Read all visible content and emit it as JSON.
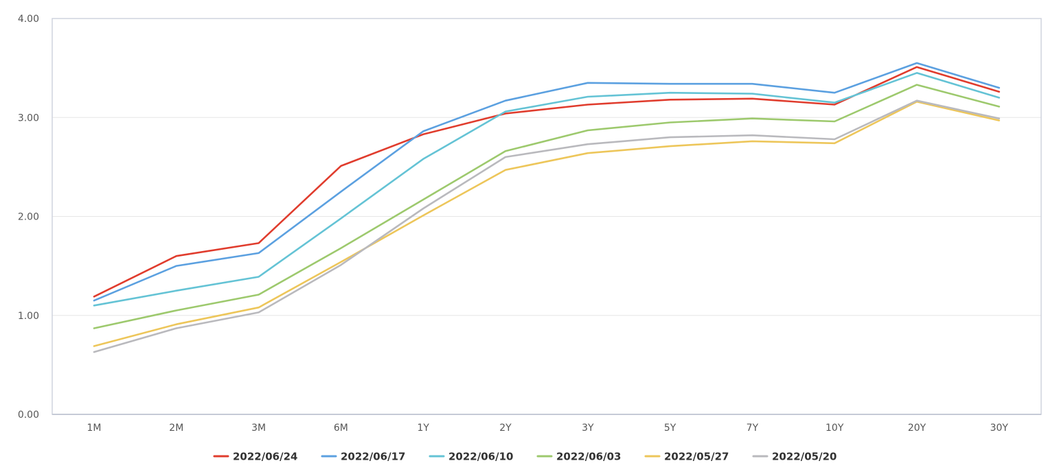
{
  "chart_data": {
    "type": "line",
    "title": "",
    "xlabel": "",
    "ylabel": "",
    "categories": [
      "1M",
      "2M",
      "3M",
      "6M",
      "1Y",
      "2Y",
      "3Y",
      "5Y",
      "7Y",
      "10Y",
      "20Y",
      "30Y"
    ],
    "ylim": [
      0,
      4
    ],
    "yticks": [
      "0.00",
      "1.00",
      "2.00",
      "3.00",
      "4.00"
    ],
    "grid": true,
    "legend": "bottom",
    "series": [
      {
        "name": "2022/06/24",
        "color": "#e03c2d",
        "values": [
          1.19,
          1.6,
          1.73,
          2.51,
          2.83,
          3.04,
          3.13,
          3.18,
          3.19,
          3.13,
          3.51,
          3.26
        ]
      },
      {
        "name": "2022/06/17",
        "color": "#5ba0e0",
        "values": [
          1.15,
          1.5,
          1.63,
          2.25,
          2.86,
          3.17,
          3.35,
          3.34,
          3.34,
          3.25,
          3.55,
          3.3
        ]
      },
      {
        "name": "2022/06/10",
        "color": "#64c3d5",
        "values": [
          1.1,
          1.25,
          1.39,
          1.98,
          2.58,
          3.06,
          3.21,
          3.25,
          3.24,
          3.15,
          3.45,
          3.2
        ]
      },
      {
        "name": "2022/06/03",
        "color": "#9dc96d",
        "values": [
          0.87,
          1.05,
          1.21,
          1.68,
          2.17,
          2.66,
          2.87,
          2.95,
          2.99,
          2.96,
          3.33,
          3.11
        ]
      },
      {
        "name": "2022/05/27",
        "color": "#edc65a",
        "values": [
          0.69,
          0.91,
          1.08,
          1.54,
          2.01,
          2.47,
          2.64,
          2.71,
          2.76,
          2.74,
          3.16,
          2.97
        ]
      },
      {
        "name": "2022/05/20",
        "color": "#b9b9bd",
        "values": [
          0.63,
          0.87,
          1.03,
          1.51,
          2.08,
          2.6,
          2.73,
          2.8,
          2.82,
          2.78,
          3.17,
          2.99
        ]
      }
    ]
  }
}
